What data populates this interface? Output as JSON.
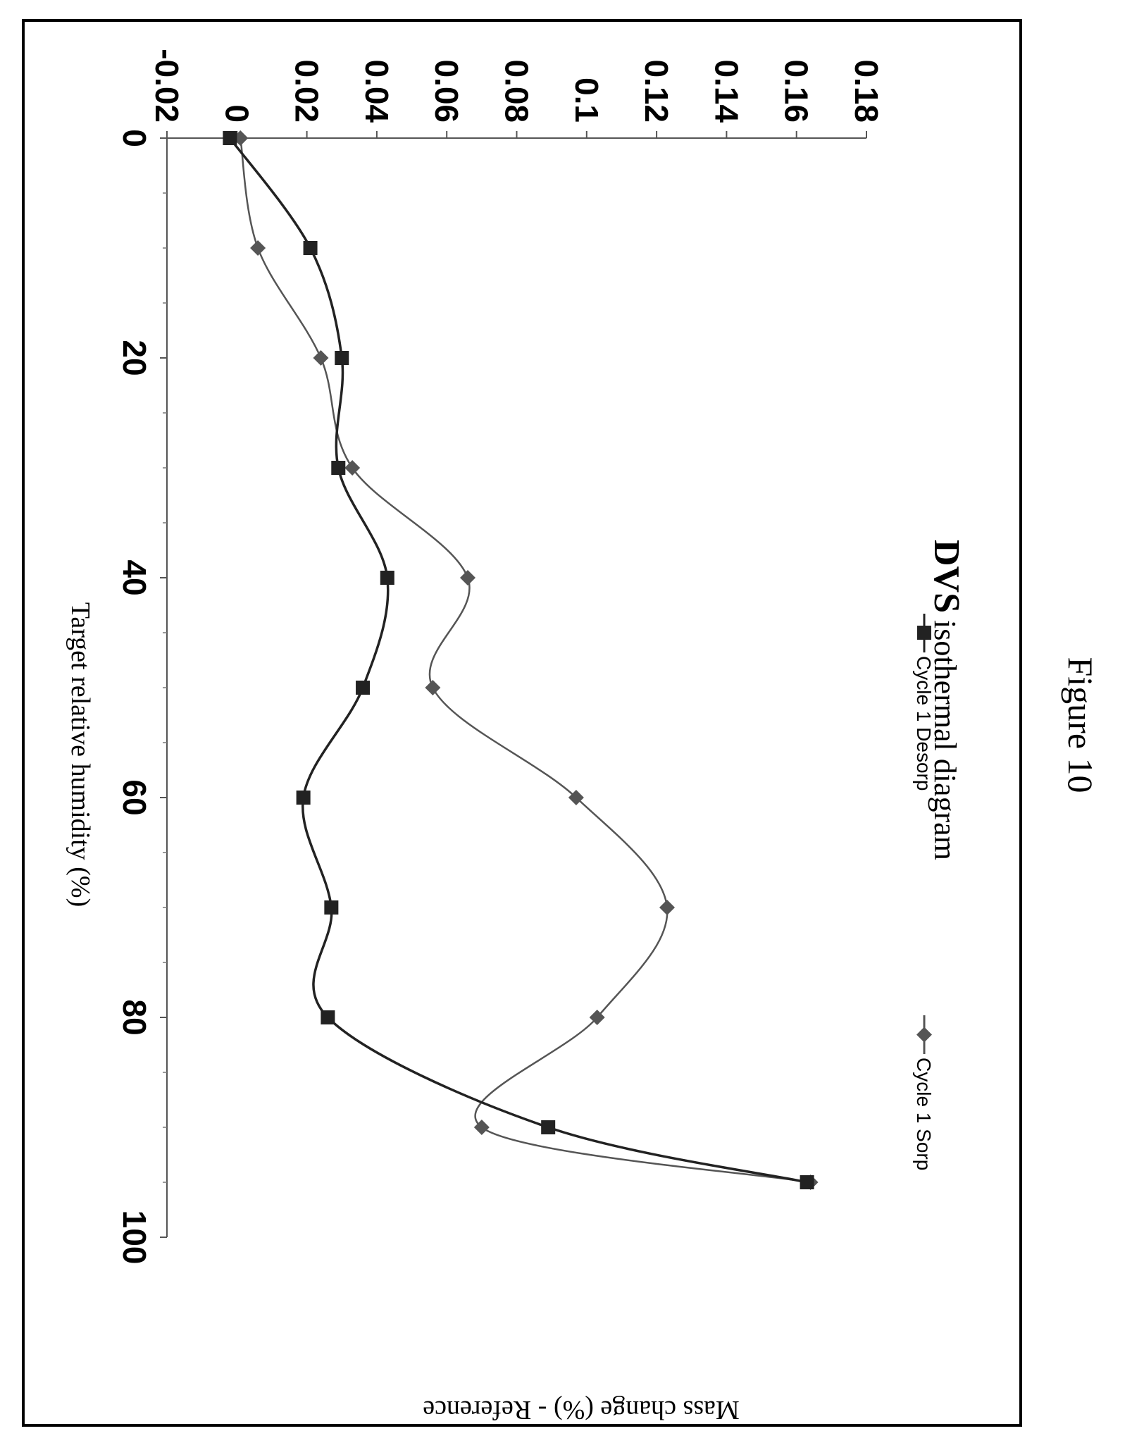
{
  "figure_caption": "Figure 10",
  "chart_data": {
    "type": "line",
    "title_bold": "DVS",
    "title": "isothermal diagram",
    "xlabel": "Target relative humidity (%)",
    "ylabel": "Mass change (%) - Reference",
    "xlim": [
      0,
      100
    ],
    "ylim": [
      -0.02,
      0.18
    ],
    "x_ticks": [
      "0",
      "20",
      "40",
      "60",
      "80",
      "100"
    ],
    "y_ticks": [
      "-0.02",
      "0",
      "0.02",
      "0.04",
      "0.06",
      "0.08",
      "0.1",
      "0.12",
      "0.14",
      "0.16",
      "0.18"
    ],
    "legend_position": "top",
    "grid": false,
    "series": [
      {
        "name": "Cycle 1 Sorp",
        "marker": "diamond",
        "color": "#555555",
        "x": [
          0,
          10,
          20,
          30,
          40,
          50,
          60,
          70,
          80,
          90,
          95
        ],
        "y": [
          0.001,
          0.006,
          0.024,
          0.033,
          0.066,
          0.056,
          0.097,
          0.123,
          0.103,
          0.07,
          0.164
        ]
      },
      {
        "name": "Cycle 1 Desorp",
        "marker": "square",
        "color": "#222222",
        "x": [
          0,
          10,
          20,
          30,
          40,
          50,
          60,
          70,
          80,
          90,
          95
        ],
        "y": [
          -0.002,
          0.021,
          0.03,
          0.029,
          0.043,
          0.036,
          0.019,
          0.027,
          0.026,
          0.089,
          0.163
        ]
      }
    ]
  }
}
